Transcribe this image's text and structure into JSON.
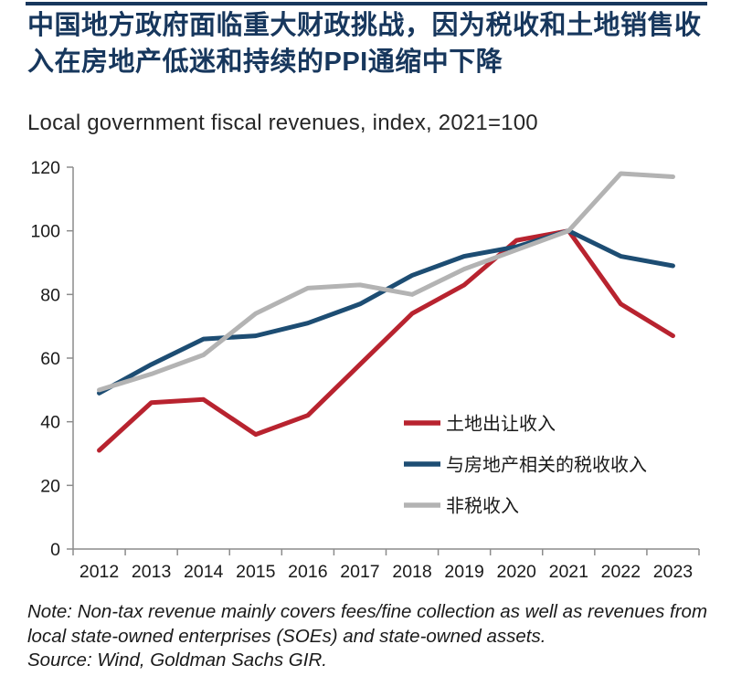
{
  "header": {
    "title": "中国地方政府面临重大财政挑战，因为税收和土地销售收入在房地产低迷和持续的PPI通缩中下降",
    "accent_color": "#17375d"
  },
  "chart_data": {
    "type": "line",
    "title": "Local government fiscal revenues, index, 2021=100",
    "x": [
      "2012",
      "2013",
      "2014",
      "2015",
      "2016",
      "2017",
      "2018",
      "2019",
      "2020",
      "2021",
      "2022",
      "2023"
    ],
    "series": [
      {
        "name": "土地出让收入",
        "color": "#b8232f",
        "values": [
          31,
          46,
          47,
          36,
          42,
          58,
          74,
          83,
          97,
          100,
          77,
          67
        ]
      },
      {
        "name": "与房地产相关的税收收入",
        "color": "#1d4d73",
        "values": [
          49,
          58,
          66,
          67,
          71,
          77,
          86,
          92,
          95,
          100,
          92,
          89
        ]
      },
      {
        "name": "非税收入",
        "color": "#b3b3b3",
        "values": [
          50,
          55,
          61,
          74,
          82,
          83,
          80,
          88,
          94,
          100,
          118,
          117
        ]
      }
    ],
    "ylim": [
      0,
      120
    ],
    "ytick_step": 20,
    "yticks": [
      0,
      20,
      40,
      60,
      80,
      100,
      120
    ],
    "grid": false,
    "legend_position": "inside-right-middle",
    "axis_color": "#8c8c8c",
    "tick_label_color": "#1a1a1a"
  },
  "footer": {
    "note": "Note: Non-tax revenue mainly covers fees/fine collection as well as revenues from local state-owned enterprises (SOEs) and state-owned assets.",
    "source": "Source: Wind, Goldman Sachs GIR."
  }
}
